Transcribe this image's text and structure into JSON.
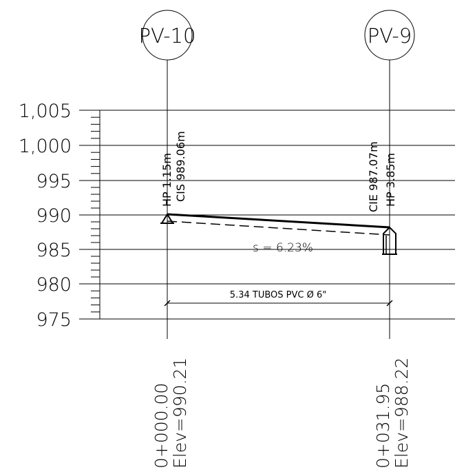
{
  "profile": {
    "nodes": [
      {
        "id": "PV-10",
        "label": "PV-10",
        "station": "0+000.00",
        "elevation": "Elev=990.21",
        "annotations": [
          "HP 1.15m",
          "CIS 989.06m"
        ]
      },
      {
        "id": "PV-9",
        "label": "PV-9",
        "station": "0+031.95",
        "elevation": "Elev=988.22",
        "annotations": [
          "CIE 987.07m",
          "HP 3.85m"
        ]
      }
    ],
    "y_axis": {
      "ticks": [
        "1,005",
        "1,000",
        "995",
        "990",
        "985",
        "980",
        "975"
      ]
    },
    "slope_label": "s = 6.23%",
    "pipe_label": "5.34 TUBOS PVC Ø 6\""
  },
  "colors": {
    "lines": "#000000",
    "background": "#ffffff"
  }
}
